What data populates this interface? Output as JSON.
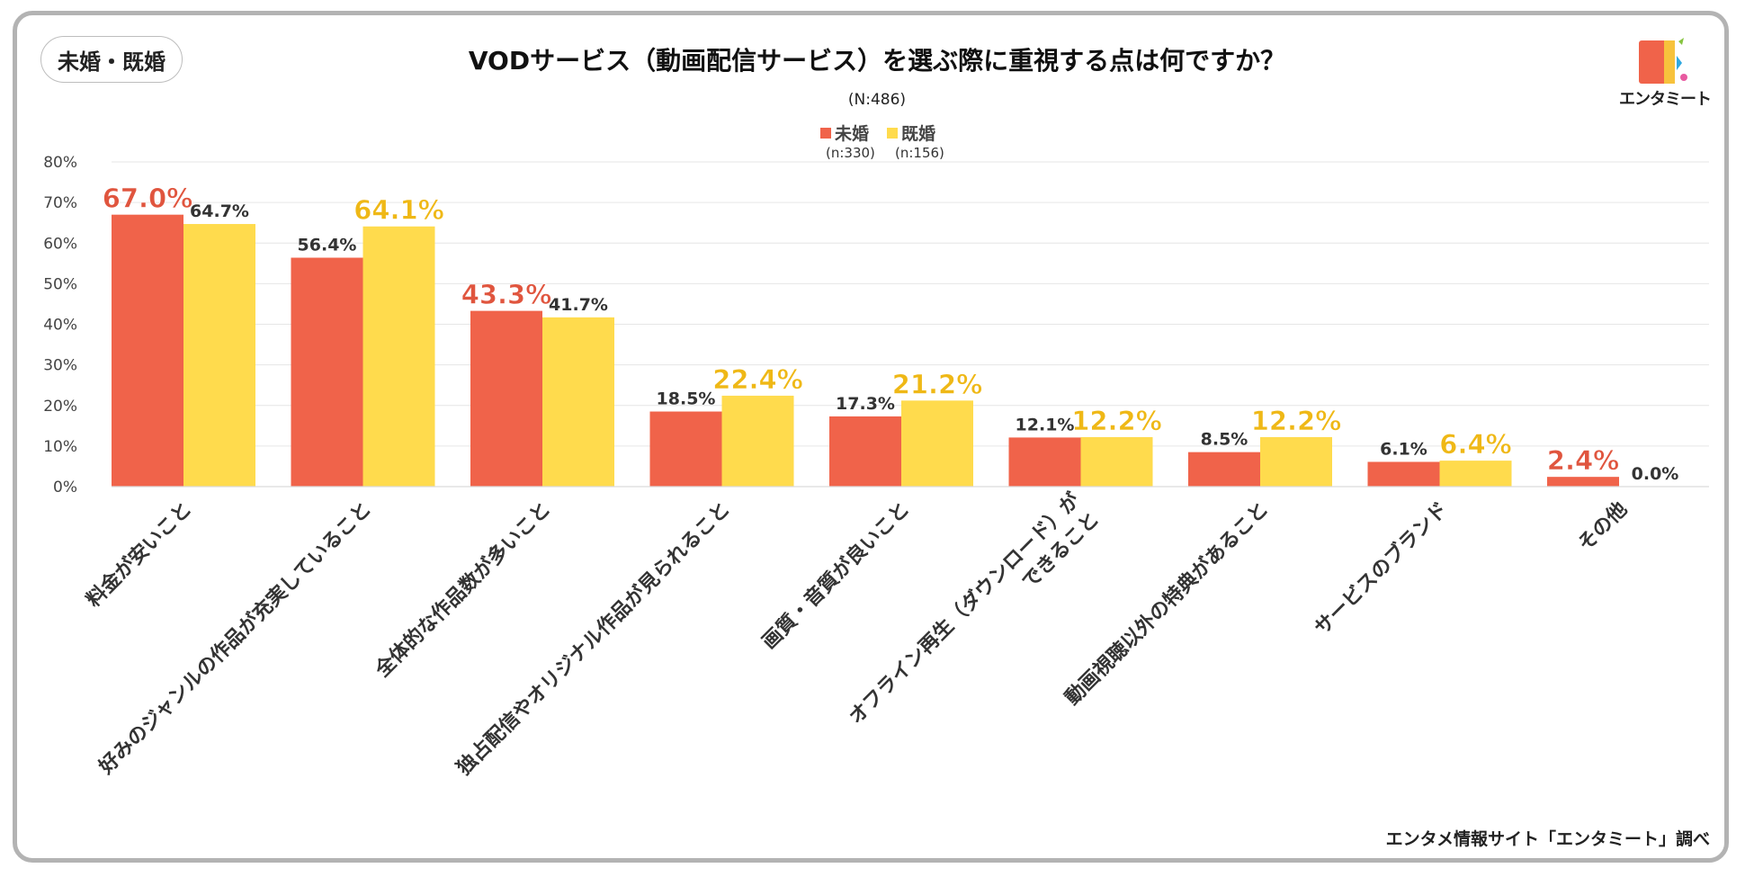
{
  "badge": "未婚・既婚",
  "logo": {
    "text": "エンタミート"
  },
  "footer": "エンタメ情報サイト「エンタミート」調べ",
  "colors": {
    "series1": "#F0634A",
    "series2": "#FFDB4D",
    "label1_highlight": "#E0553E",
    "label2_highlight": "#EFB816",
    "label_normal": "#333333",
    "grid": "#e6e6e6"
  },
  "chart_data": {
    "type": "bar",
    "title": "VODサービス（動画配信サービス）を選ぶ際に重視する点は何ですか？",
    "subtitle": "(N:486)",
    "categories": [
      "料金が安いこと",
      "好みのジャンルの作品が充実していること",
      "全体的な作品数が多いこと",
      "独占配信やオリジナル作品が見られること",
      "画質・音質が良いこと",
      "オフライン再生（ダウンロード）が\nできること",
      "動画視聴以外の特典があること",
      "サービスのブランド",
      "その他"
    ],
    "series": [
      {
        "name": "未婚",
        "n": "(n:330)",
        "values": [
          67.0,
          56.4,
          43.3,
          18.5,
          17.3,
          12.1,
          8.5,
          6.1,
          2.4
        ],
        "labels": [
          "67.0%",
          "56.4%",
          "43.3%",
          "18.5%",
          "17.3%",
          "12.1%",
          "8.5%",
          "6.1%",
          "2.4%"
        ],
        "highlight": [
          true,
          false,
          true,
          false,
          false,
          false,
          false,
          false,
          true
        ]
      },
      {
        "name": "既婚",
        "n": "(n:156)",
        "values": [
          64.7,
          64.1,
          41.7,
          22.4,
          21.2,
          12.2,
          12.2,
          6.4,
          0.0
        ],
        "labels": [
          "64.7%",
          "64.1%",
          "41.7%",
          "22.4%",
          "21.2%",
          "12.2%",
          "12.2%",
          "6.4%",
          "0.0%"
        ],
        "highlight": [
          false,
          true,
          false,
          true,
          true,
          true,
          true,
          true,
          false
        ]
      }
    ],
    "yticks": [
      "0%",
      "10%",
      "20%",
      "30%",
      "40%",
      "50%",
      "60%",
      "70%",
      "80%"
    ],
    "ylim": [
      0,
      80
    ],
    "legend": "top-center",
    "grid": true
  }
}
